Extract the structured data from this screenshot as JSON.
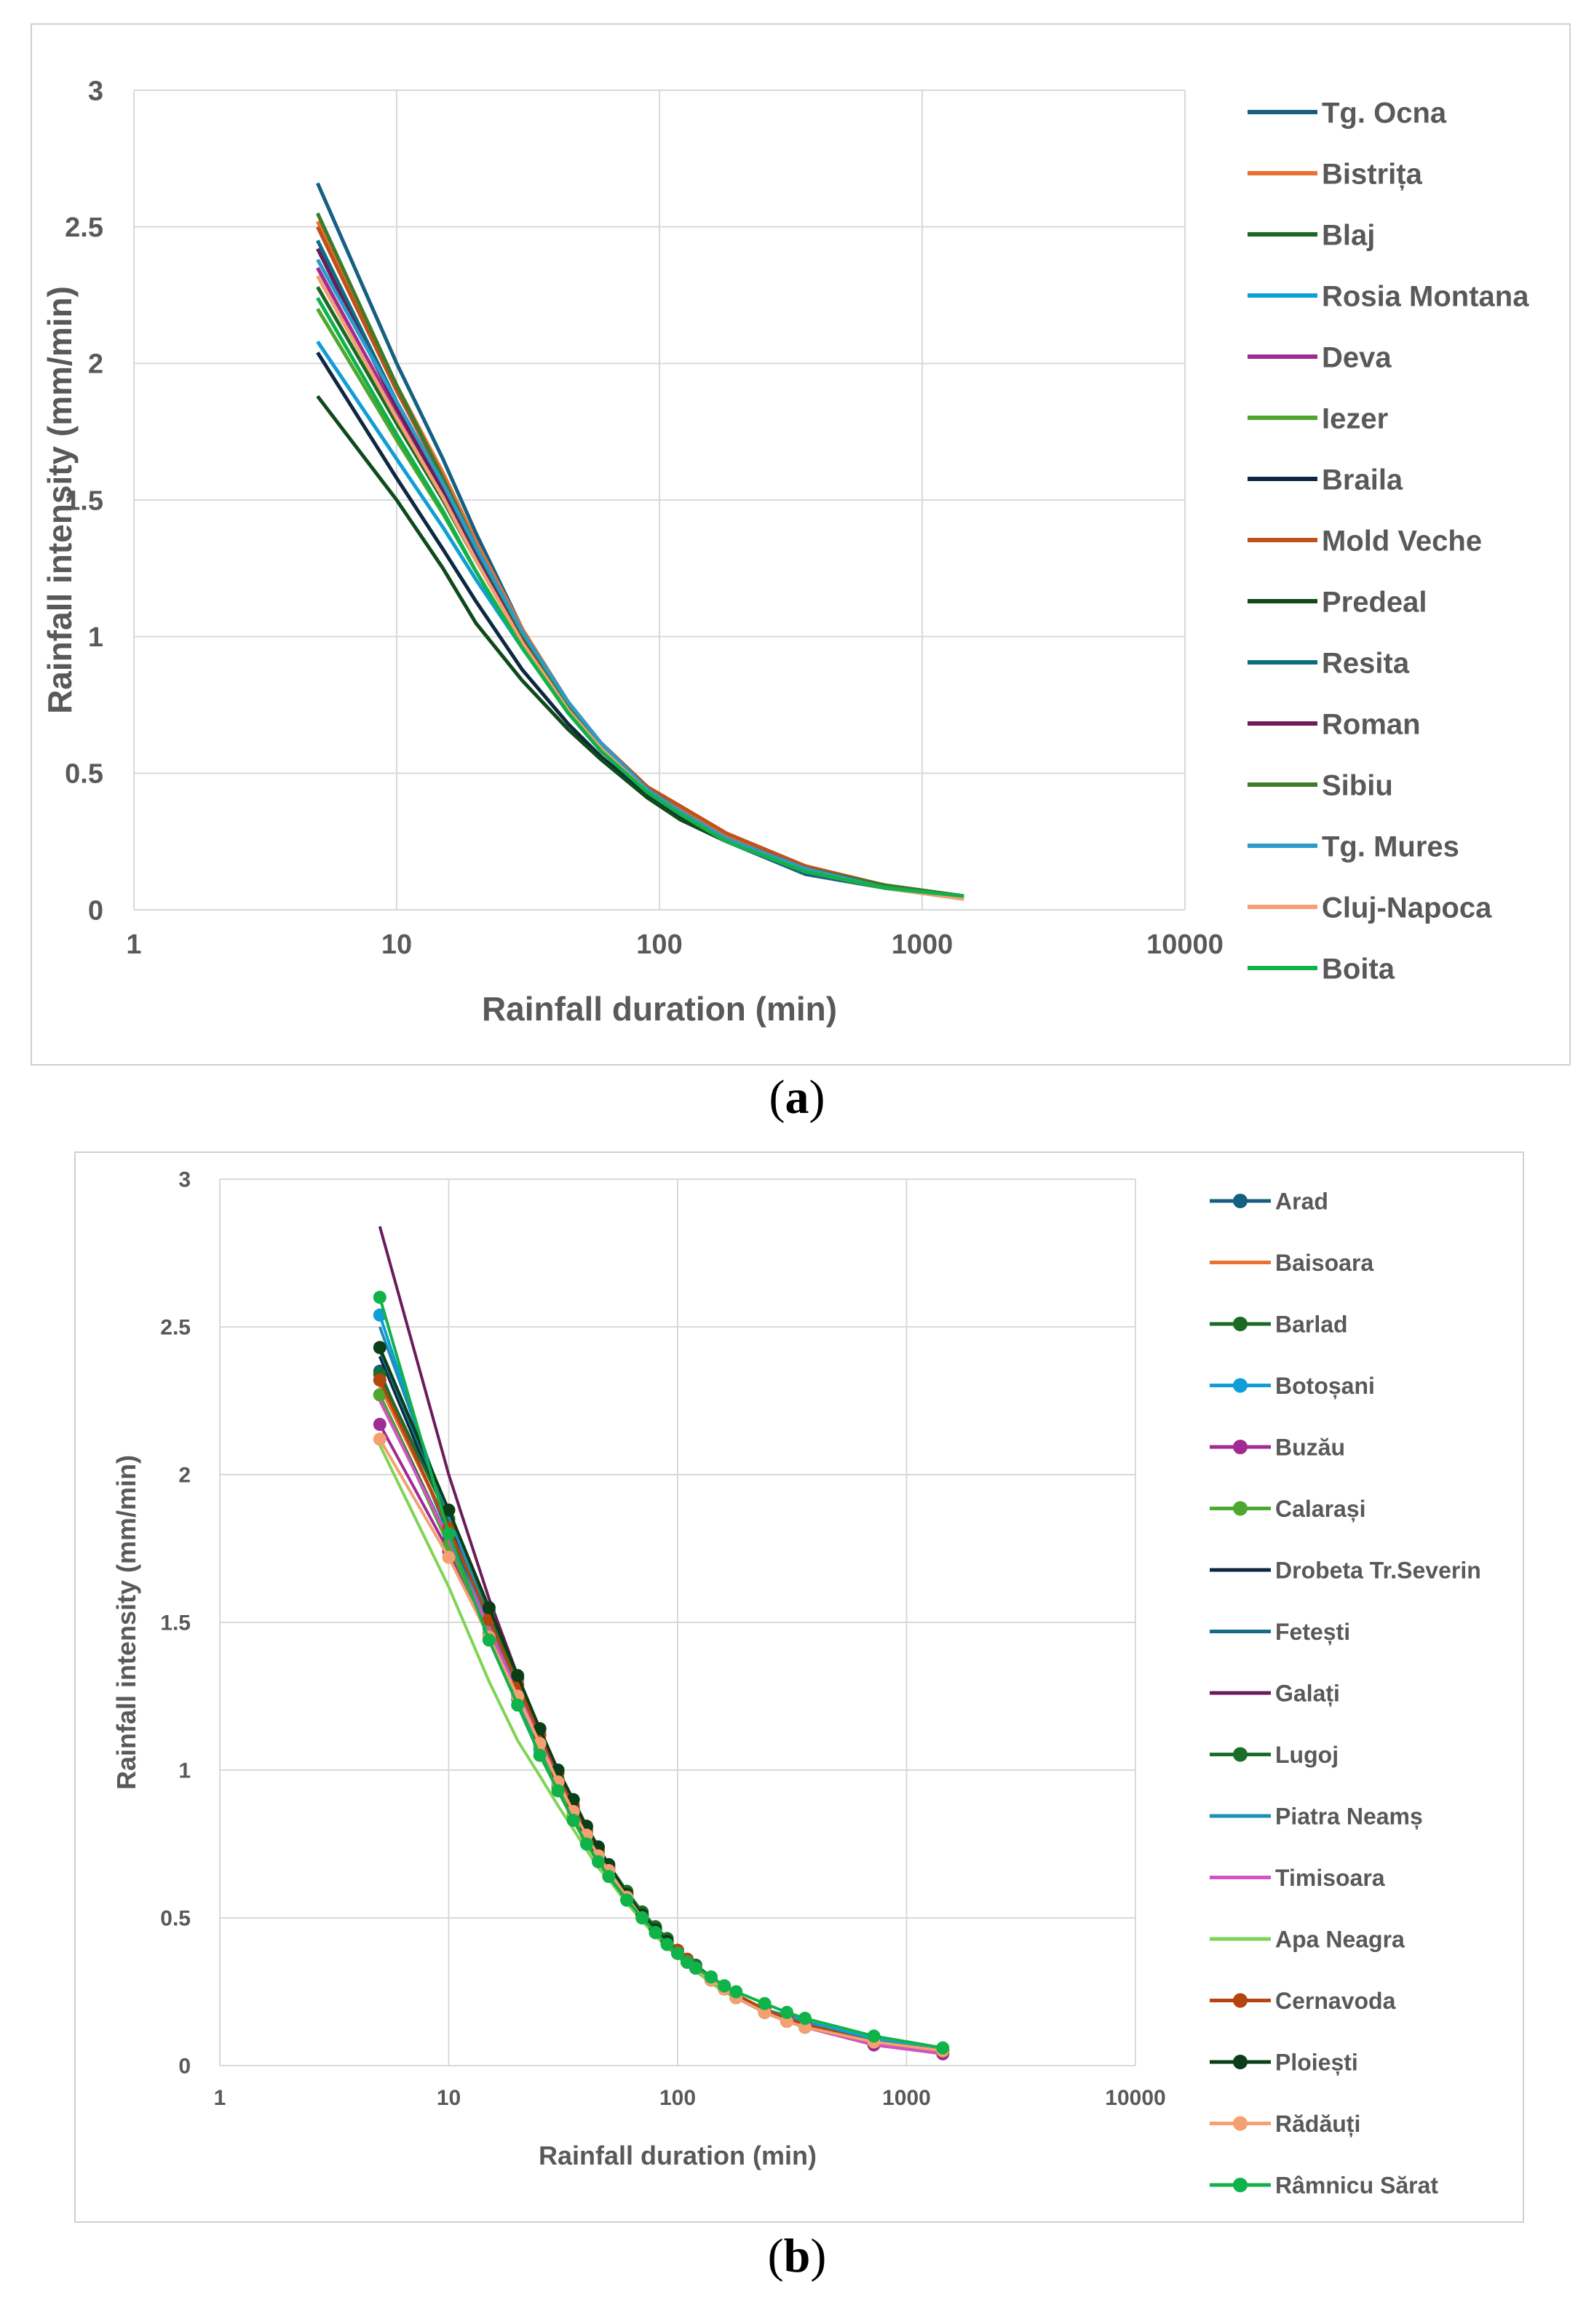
{
  "chart_data": [
    {
      "type": "line",
      "panel": "a",
      "caption": "a",
      "xlabel": "Rainfall duration (min)",
      "ylabel": "Rainfall intensity (mm/min)",
      "xscale": "log",
      "xlim": [
        1,
        10000
      ],
      "ylim": [
        0,
        3
      ],
      "x_ticks": [
        "1",
        "10",
        "100",
        "1000",
        "10000"
      ],
      "y_ticks": [
        "0",
        "0.5",
        "1",
        "1.5",
        "2",
        "2.5",
        "3"
      ],
      "grid": true,
      "legend": "right",
      "x": [
        5,
        10,
        15,
        20,
        30,
        45,
        60,
        90,
        120,
        180,
        360,
        720,
        1440
      ],
      "series": [
        {
          "name": "Tg. Ocna",
          "color": "#156082",
          "markers": false,
          "values": [
            2.66,
            2.0,
            1.65,
            1.38,
            1.03,
            0.75,
            0.6,
            0.43,
            0.34,
            0.25,
            0.13,
            0.08,
            0.04
          ]
        },
        {
          "name": "Bistrița",
          "color": "#e97132",
          "markers": false,
          "values": [
            2.52,
            1.92,
            1.6,
            1.35,
            1.03,
            0.76,
            0.61,
            0.45,
            0.37,
            0.27,
            0.15,
            0.09,
            0.05
          ]
        },
        {
          "name": "Blaj",
          "color": "#196b24",
          "markers": false,
          "values": [
            2.28,
            1.78,
            1.5,
            1.28,
            0.99,
            0.74,
            0.6,
            0.44,
            0.36,
            0.26,
            0.15,
            0.09,
            0.05
          ]
        },
        {
          "name": "Rosia Montana",
          "color": "#0f9ed5",
          "markers": false,
          "values": [
            2.08,
            1.65,
            1.4,
            1.21,
            0.96,
            0.73,
            0.59,
            0.43,
            0.35,
            0.26,
            0.15,
            0.09,
            0.05
          ]
        },
        {
          "name": "Deva",
          "color": "#a02b93",
          "markers": false,
          "values": [
            2.35,
            1.82,
            1.52,
            1.29,
            0.98,
            0.73,
            0.59,
            0.43,
            0.35,
            0.25,
            0.14,
            0.08,
            0.04
          ]
        },
        {
          "name": "Iezer",
          "color": "#4ea72e",
          "markers": false,
          "values": [
            2.2,
            1.72,
            1.45,
            1.24,
            0.96,
            0.72,
            0.58,
            0.43,
            0.35,
            0.25,
            0.14,
            0.08,
            0.05
          ]
        },
        {
          "name": "Braila",
          "color": "#0e2841",
          "markers": false,
          "values": [
            2.04,
            1.58,
            1.32,
            1.13,
            0.88,
            0.68,
            0.56,
            0.42,
            0.34,
            0.26,
            0.15,
            0.09,
            0.05
          ]
        },
        {
          "name": "Mold Veche",
          "color": "#c0501c",
          "markers": false,
          "values": [
            2.5,
            1.9,
            1.58,
            1.33,
            1.02,
            0.76,
            0.61,
            0.45,
            0.38,
            0.28,
            0.16,
            0.09,
            0.05
          ]
        },
        {
          "name": "Predeal",
          "color": "#0e4a1a",
          "markers": false,
          "values": [
            1.88,
            1.5,
            1.25,
            1.05,
            0.84,
            0.66,
            0.55,
            0.41,
            0.33,
            0.25,
            0.15,
            0.09,
            0.05
          ]
        },
        {
          "name": "Resita",
          "color": "#0a6e80",
          "markers": false,
          "values": [
            2.45,
            1.86,
            1.55,
            1.31,
            1.0,
            0.74,
            0.6,
            0.44,
            0.35,
            0.26,
            0.15,
            0.09,
            0.05
          ]
        },
        {
          "name": "Roman",
          "color": "#6b1c5a",
          "markers": false,
          "values": [
            2.42,
            1.84,
            1.53,
            1.29,
            0.99,
            0.74,
            0.59,
            0.44,
            0.35,
            0.26,
            0.14,
            0.08,
            0.05
          ]
        },
        {
          "name": "Sibiu",
          "color": "#3e7a2a",
          "markers": false,
          "values": [
            2.55,
            1.92,
            1.58,
            1.33,
            1.01,
            0.75,
            0.6,
            0.44,
            0.36,
            0.26,
            0.15,
            0.09,
            0.05
          ]
        },
        {
          "name": "Tg. Mures",
          "color": "#2b9cc8",
          "markers": false,
          "values": [
            2.38,
            1.86,
            1.56,
            1.33,
            1.02,
            0.76,
            0.61,
            0.44,
            0.36,
            0.26,
            0.15,
            0.08,
            0.04
          ]
        },
        {
          "name": "Cluj-Napoca",
          "color": "#f4a070",
          "markers": false,
          "values": [
            2.32,
            1.8,
            1.51,
            1.28,
            0.98,
            0.73,
            0.59,
            0.43,
            0.35,
            0.25,
            0.14,
            0.08,
            0.04
          ]
        },
        {
          "name": "Boita",
          "color": "#10b24a",
          "markers": false,
          "values": [
            2.24,
            1.74,
            1.46,
            1.24,
            0.96,
            0.72,
            0.58,
            0.43,
            0.35,
            0.25,
            0.14,
            0.08,
            0.05
          ]
        }
      ]
    },
    {
      "type": "line",
      "panel": "b",
      "caption": "b",
      "xlabel": "Rainfall duration (min)",
      "ylabel": "Rainfall intensity (mm/min)",
      "xscale": "log",
      "xlim": [
        1,
        10000
      ],
      "ylim": [
        0,
        3
      ],
      "x_ticks": [
        "1",
        "10",
        "100",
        "1000",
        "10000"
      ],
      "y_ticks": [
        "0",
        "0.5",
        "1",
        "1.5",
        "2",
        "2.5",
        "3"
      ],
      "grid": true,
      "legend": "right",
      "x": [
        5,
        10,
        15,
        20,
        25,
        30,
        35,
        40,
        45,
        50,
        60,
        70,
        80,
        90,
        100,
        110,
        120,
        140,
        160,
        180,
        240,
        300,
        360,
        720,
        1440
      ],
      "series": [
        {
          "name": "Arad",
          "color": "#156082",
          "markers": true,
          "values": [
            2.35,
            1.8,
            1.48,
            1.26,
            1.09,
            0.96,
            0.86,
            0.78,
            0.71,
            0.66,
            0.57,
            0.51,
            0.46,
            0.42,
            0.38,
            0.35,
            0.33,
            0.29,
            0.26,
            0.24,
            0.19,
            0.16,
            0.14,
            0.08,
            0.05
          ]
        },
        {
          "name": "Baisoara",
          "color": "#e97132",
          "markers": false,
          "values": [
            2.3,
            1.82,
            1.52,
            1.3,
            1.13,
            1.0,
            0.9,
            0.81,
            0.74,
            0.68,
            0.59,
            0.52,
            0.47,
            0.43,
            0.39,
            0.36,
            0.34,
            0.3,
            0.27,
            0.24,
            0.19,
            0.16,
            0.14,
            0.08,
            0.05
          ]
        },
        {
          "name": "Barlad",
          "color": "#196b24",
          "markers": true,
          "values": [
            2.27,
            1.78,
            1.48,
            1.27,
            1.1,
            0.97,
            0.87,
            0.79,
            0.72,
            0.67,
            0.58,
            0.51,
            0.46,
            0.42,
            0.39,
            0.36,
            0.33,
            0.29,
            0.26,
            0.24,
            0.19,
            0.16,
            0.14,
            0.08,
            0.05
          ]
        },
        {
          "name": "Botoșani",
          "color": "#0f9ed5",
          "markers": true,
          "values": [
            2.54,
            1.84,
            1.48,
            1.24,
            1.07,
            0.94,
            0.84,
            0.76,
            0.7,
            0.65,
            0.56,
            0.5,
            0.45,
            0.41,
            0.38,
            0.35,
            0.33,
            0.29,
            0.26,
            0.24,
            0.19,
            0.17,
            0.15,
            0.09,
            0.05
          ]
        },
        {
          "name": "Buzău",
          "color": "#a02b93",
          "markers": true,
          "values": [
            2.17,
            1.74,
            1.46,
            1.25,
            1.09,
            0.96,
            0.86,
            0.78,
            0.71,
            0.66,
            0.57,
            0.5,
            0.45,
            0.41,
            0.38,
            0.35,
            0.33,
            0.29,
            0.26,
            0.23,
            0.18,
            0.15,
            0.13,
            0.07,
            0.04
          ]
        },
        {
          "name": "Calarași",
          "color": "#4ea72e",
          "markers": true,
          "values": [
            2.27,
            1.76,
            1.46,
            1.25,
            1.08,
            0.95,
            0.85,
            0.77,
            0.71,
            0.65,
            0.56,
            0.5,
            0.45,
            0.41,
            0.38,
            0.35,
            0.33,
            0.29,
            0.26,
            0.24,
            0.19,
            0.16,
            0.14,
            0.08,
            0.05
          ]
        },
        {
          "name": "Drobeta Tr.Severin",
          "color": "#0e2841",
          "markers": false,
          "values": [
            2.4,
            1.84,
            1.52,
            1.29,
            1.11,
            0.98,
            0.87,
            0.79,
            0.72,
            0.66,
            0.57,
            0.5,
            0.45,
            0.41,
            0.38,
            0.35,
            0.33,
            0.29,
            0.26,
            0.23,
            0.18,
            0.15,
            0.13,
            0.08,
            0.05
          ]
        },
        {
          "name": "Fetești",
          "color": "#156d8a",
          "markers": false,
          "values": [
            2.42,
            1.86,
            1.53,
            1.3,
            1.12,
            0.99,
            0.88,
            0.8,
            0.73,
            0.67,
            0.58,
            0.51,
            0.46,
            0.42,
            0.39,
            0.36,
            0.33,
            0.29,
            0.26,
            0.24,
            0.19,
            0.16,
            0.14,
            0.08,
            0.05
          ]
        },
        {
          "name": "Galați",
          "color": "#6b1c5a",
          "markers": false,
          "values": [
            2.84,
            2.0,
            1.58,
            1.32,
            1.13,
            0.99,
            0.88,
            0.8,
            0.73,
            0.67,
            0.58,
            0.51,
            0.46,
            0.42,
            0.38,
            0.35,
            0.33,
            0.29,
            0.26,
            0.23,
            0.18,
            0.15,
            0.13,
            0.08,
            0.05
          ]
        },
        {
          "name": "Lugoj",
          "color": "#1a6e2a",
          "markers": true,
          "values": [
            2.34,
            1.85,
            1.54,
            1.31,
            1.14,
            1.0,
            0.9,
            0.81,
            0.74,
            0.68,
            0.59,
            0.52,
            0.47,
            0.43,
            0.39,
            0.36,
            0.34,
            0.3,
            0.27,
            0.24,
            0.19,
            0.16,
            0.14,
            0.08,
            0.05
          ]
        },
        {
          "name": "Piatra Neamș",
          "color": "#1e8fb8",
          "markers": false,
          "values": [
            2.5,
            1.86,
            1.51,
            1.28,
            1.1,
            0.97,
            0.86,
            0.78,
            0.71,
            0.66,
            0.57,
            0.5,
            0.45,
            0.41,
            0.38,
            0.35,
            0.33,
            0.29,
            0.26,
            0.23,
            0.18,
            0.15,
            0.13,
            0.08,
            0.05
          ]
        },
        {
          "name": "Timisoara",
          "color": "#d253c5",
          "markers": false,
          "values": [
            2.25,
            1.78,
            1.48,
            1.26,
            1.1,
            0.97,
            0.86,
            0.78,
            0.71,
            0.66,
            0.57,
            0.5,
            0.45,
            0.41,
            0.38,
            0.35,
            0.32,
            0.28,
            0.25,
            0.23,
            0.18,
            0.15,
            0.13,
            0.07,
            0.04
          ]
        },
        {
          "name": "Apa Neagra",
          "color": "#7fd454",
          "markers": false,
          "values": [
            2.1,
            1.62,
            1.3,
            1.1,
            0.98,
            0.88,
            0.8,
            0.73,
            0.67,
            0.63,
            0.55,
            0.49,
            0.44,
            0.4,
            0.37,
            0.34,
            0.32,
            0.28,
            0.25,
            0.23,
            0.18,
            0.15,
            0.13,
            0.08,
            0.05
          ]
        },
        {
          "name": "Cernavoda",
          "color": "#b5450f",
          "markers": true,
          "values": [
            2.32,
            1.82,
            1.51,
            1.29,
            1.12,
            0.99,
            0.88,
            0.8,
            0.73,
            0.67,
            0.58,
            0.51,
            0.46,
            0.42,
            0.39,
            0.36,
            0.33,
            0.29,
            0.26,
            0.24,
            0.19,
            0.16,
            0.14,
            0.08,
            0.05
          ]
        },
        {
          "name": "Ploiești",
          "color": "#0b3d18",
          "markers": true,
          "values": [
            2.43,
            1.88,
            1.55,
            1.32,
            1.14,
            1.0,
            0.9,
            0.81,
            0.74,
            0.68,
            0.58,
            0.51,
            0.46,
            0.42,
            0.38,
            0.35,
            0.33,
            0.29,
            0.26,
            0.23,
            0.18,
            0.15,
            0.13,
            0.08,
            0.05
          ]
        },
        {
          "name": "Rădăuți",
          "color": "#f4a070",
          "markers": true,
          "values": [
            2.12,
            1.72,
            1.45,
            1.25,
            1.09,
            0.96,
            0.86,
            0.78,
            0.71,
            0.66,
            0.57,
            0.5,
            0.45,
            0.41,
            0.38,
            0.35,
            0.33,
            0.29,
            0.26,
            0.23,
            0.18,
            0.15,
            0.13,
            0.08,
            0.05
          ]
        },
        {
          "name": "Râmnicu Sărat",
          "color": "#10b24a",
          "markers": true,
          "values": [
            2.6,
            1.8,
            1.44,
            1.22,
            1.05,
            0.93,
            0.83,
            0.75,
            0.69,
            0.64,
            0.56,
            0.5,
            0.45,
            0.41,
            0.38,
            0.35,
            0.33,
            0.3,
            0.27,
            0.25,
            0.21,
            0.18,
            0.16,
            0.1,
            0.06
          ]
        }
      ]
    }
  ]
}
